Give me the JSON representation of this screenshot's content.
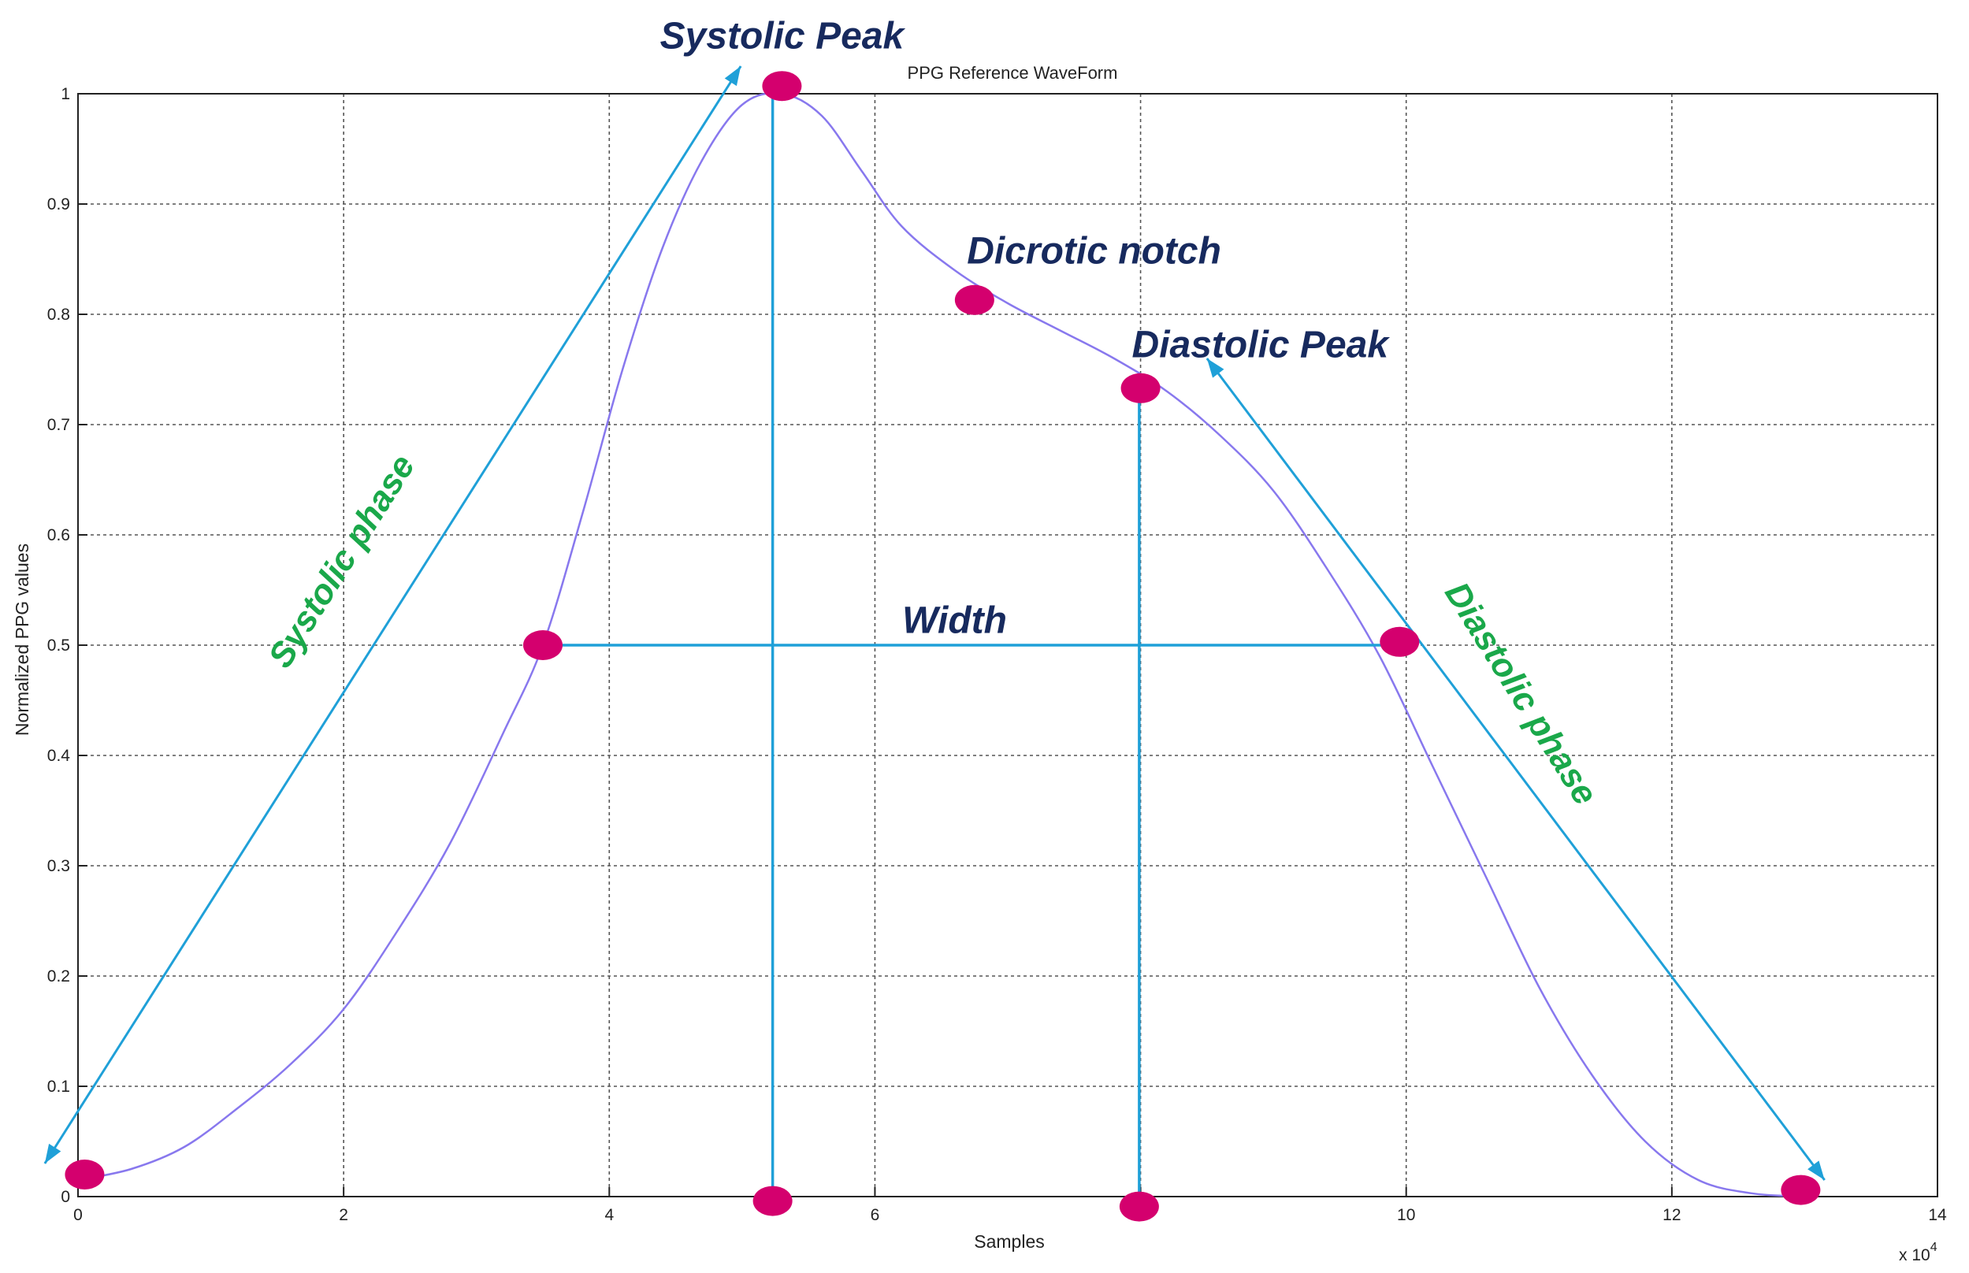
{
  "colors": {
    "curve": "#8878ee",
    "marker": "#d4006e",
    "guide": "#1fa0d8",
    "annotation_dark": "#172a5e",
    "annotation_green": "#1aa84a"
  },
  "chart_data": {
    "type": "line",
    "title": "PPG Reference WaveForm",
    "xlabel": "Samples",
    "ylabel": "Normalized PPG values",
    "x_multiplier_label": "x 10",
    "x_multiplier_exponent": "4",
    "xlim": [
      0,
      14
    ],
    "ylim": [
      0,
      1
    ],
    "grid": true,
    "x_ticks": [
      0,
      2,
      4,
      6,
      8,
      10,
      12,
      14
    ],
    "x_tick_labels": [
      "0",
      "2",
      "4",
      "6",
      "8",
      "10",
      "12",
      "14"
    ],
    "y_ticks": [
      0,
      0.1,
      0.2,
      0.3,
      0.4,
      0.5,
      0.6,
      0.7,
      0.8,
      0.9,
      1
    ],
    "y_tick_labels": [
      "0",
      "0.1",
      "0.2",
      "0.3",
      "0.4",
      "0.5",
      "0.6",
      "0.7",
      "0.8",
      "0.9",
      "1"
    ],
    "series": [
      {
        "x": [
          0.0,
          0.4,
          0.8,
          1.2,
          1.6,
          2.0,
          2.4,
          2.8,
          3.2,
          3.5,
          3.8,
          4.1,
          4.4,
          4.7,
          5.0,
          5.3,
          5.6,
          5.9,
          6.2,
          6.6,
          7.0,
          7.4,
          7.8,
          8.2,
          8.6,
          9.0,
          9.4,
          9.8,
          10.2,
          10.6,
          11.0,
          11.4,
          11.8,
          12.2,
          12.6,
          13.0
        ],
        "y": [
          0.015,
          0.025,
          0.045,
          0.08,
          0.12,
          0.17,
          0.24,
          0.32,
          0.42,
          0.5,
          0.62,
          0.75,
          0.86,
          0.94,
          0.99,
          1.0,
          0.98,
          0.93,
          0.88,
          0.84,
          0.81,
          0.785,
          0.76,
          0.73,
          0.69,
          0.64,
          0.57,
          0.49,
          0.39,
          0.29,
          0.19,
          0.11,
          0.05,
          0.015,
          0.003,
          0.0
        ]
      }
    ],
    "markers": [
      {
        "x": 0.05,
        "y": 0.02
      },
      {
        "x": 3.5,
        "y": 0.5
      },
      {
        "x": 5.3,
        "y": 1.007
      },
      {
        "x": 5.23,
        "y": -0.004
      },
      {
        "x": 6.75,
        "y": 0.813
      },
      {
        "x": 8.0,
        "y": 0.733
      },
      {
        "x": 7.99,
        "y": -0.009
      },
      {
        "x": 9.95,
        "y": 0.503
      },
      {
        "x": 12.97,
        "y": 0.006
      }
    ],
    "guide_lines": [
      {
        "x1": 5.23,
        "y1": 0.0,
        "x2": 5.23,
        "y2": 1.0
      },
      {
        "x1": 7.99,
        "y1": 0.0,
        "x2": 7.99,
        "y2": 0.733
      },
      {
        "x1": 3.5,
        "y1": 0.5,
        "x2": 9.95,
        "y2": 0.5
      }
    ],
    "arrows": [
      {
        "x1": -0.25,
        "y1": 0.03,
        "x2": 4.99,
        "y2": 1.025
      },
      {
        "x1": 8.5,
        "y1": 0.76,
        "x2": 13.15,
        "y2": 0.015
      }
    ],
    "annotations": [
      {
        "text": "Systolic Peak",
        "x": 5.3,
        "y": 1.05,
        "style": "dark",
        "rotate": 0
      },
      {
        "text": "Dicrotic notch",
        "x": 7.65,
        "y": 0.855,
        "style": "dark",
        "rotate": 0
      },
      {
        "text": "Diastolic Peak",
        "x": 8.9,
        "y": 0.77,
        "style": "dark",
        "rotate": 0
      },
      {
        "text": "Width",
        "x": 6.6,
        "y": 0.52,
        "style": "dark",
        "rotate": 0
      },
      {
        "text": "Systolic phase",
        "x": 2.0,
        "y": 0.575,
        "style": "green",
        "rotate": -58
      },
      {
        "text": "Diastolic phase",
        "x": 10.85,
        "y": 0.455,
        "style": "green",
        "rotate": 58
      }
    ]
  }
}
